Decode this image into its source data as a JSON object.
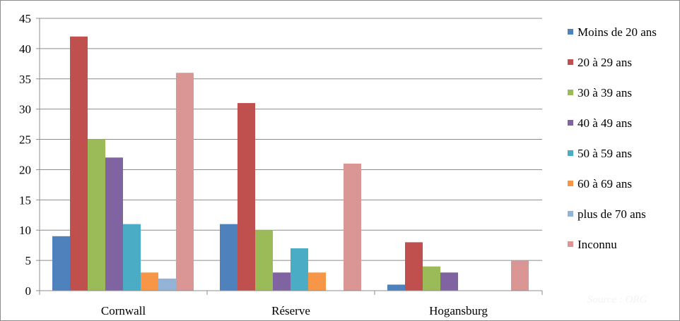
{
  "chart_data": {
    "type": "bar",
    "categories": [
      "Cornwall",
      "Réserve",
      "Hogansburg"
    ],
    "series": [
      {
        "name": "Moins de 20 ans",
        "color": "#4f81bd",
        "values": [
          9,
          11,
          1
        ]
      },
      {
        "name": "20 à 29 ans",
        "color": "#c0504d",
        "values": [
          42,
          31,
          8
        ]
      },
      {
        "name": "30 à 39 ans",
        "color": "#9bbb59",
        "values": [
          25,
          10,
          4
        ]
      },
      {
        "name": "40 à 49 ans",
        "color": "#8064a2",
        "values": [
          22,
          3,
          3
        ]
      },
      {
        "name": "50 à 59 ans",
        "color": "#4bacc6",
        "values": [
          11,
          7,
          0
        ]
      },
      {
        "name": "60 à 69 ans",
        "color": "#f79646",
        "values": [
          3,
          3,
          0
        ]
      },
      {
        "name": "plus de 70 ans",
        "color": "#95b3d7",
        "values": [
          2,
          0,
          0
        ]
      },
      {
        "name": "Inconnu",
        "color": "#d99694",
        "values": [
          36,
          21,
          5
        ]
      }
    ],
    "yticks": [
      "0",
      "5",
      "10",
      "15",
      "20",
      "25",
      "30",
      "35",
      "40",
      "45"
    ],
    "ylim": [
      0,
      45
    ],
    "grid": true,
    "legend": "right",
    "title": "",
    "xlabel": "",
    "ylabel": ""
  },
  "watermark": "Source : ORG"
}
